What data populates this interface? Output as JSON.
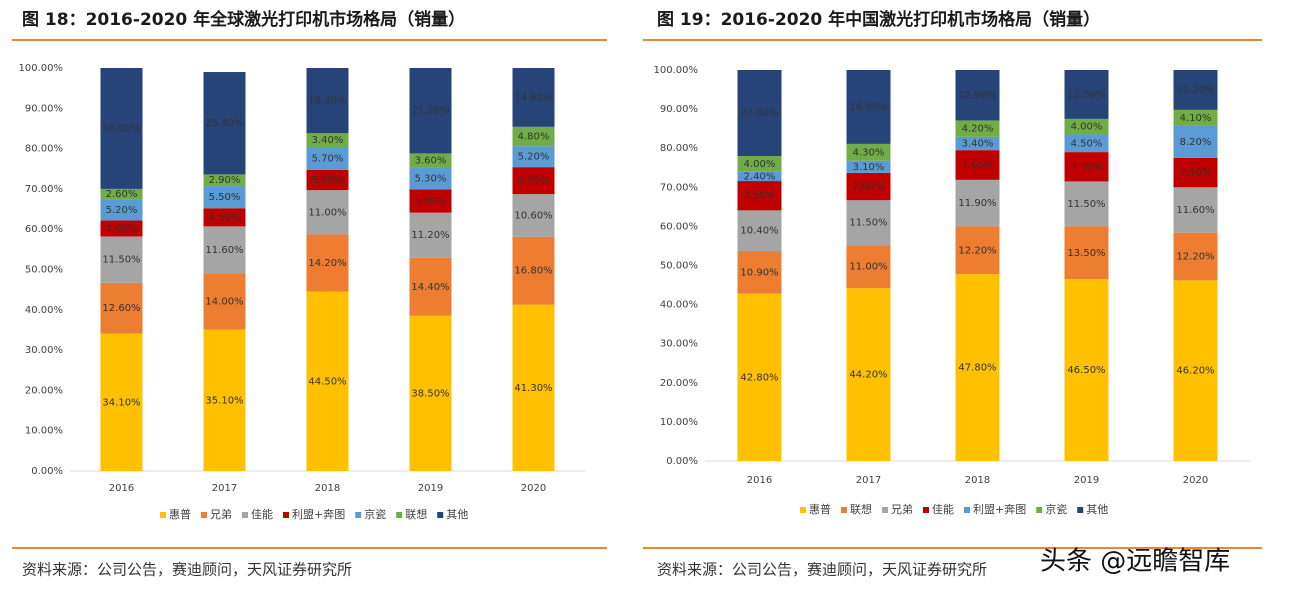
{
  "chart_data": [
    {
      "type": "stacked-bar",
      "title": "图 18：2016-2020 年全球激光打印机市场格局（销量）",
      "source": "资料来源：公司公告，赛迪顾问，天风证券研究所",
      "categories": [
        "2016",
        "2017",
        "2018",
        "2019",
        "2020"
      ],
      "ylim": [
        0,
        100
      ],
      "yticks": [
        {
          "value": 0,
          "label": "0.00%"
        },
        {
          "value": 10,
          "label": "10.00%"
        },
        {
          "value": 20,
          "label": "20.00%"
        },
        {
          "value": 30,
          "label": "30.00%"
        },
        {
          "value": 40,
          "label": "40.00%"
        },
        {
          "value": 50,
          "label": "50.00%"
        },
        {
          "value": 60,
          "label": "60.00%"
        },
        {
          "value": 70,
          "label": "70.00%"
        },
        {
          "value": 80,
          "label": "80.00%"
        },
        {
          "value": 90,
          "label": "90.00%"
        },
        {
          "value": 100,
          "label": "100.00%"
        }
      ],
      "series": [
        {
          "name": "惠普",
          "color": "#ffc000",
          "values": [
            34.1,
            35.1,
            44.5,
            38.5,
            41.3
          ],
          "value_labels": [
            "34.10%",
            "35.10%",
            "44.50%",
            "38.50%",
            "41.30%"
          ]
        },
        {
          "name": "兄弟",
          "color": "#ed7d31",
          "values": [
            12.6,
            14.0,
            14.2,
            14.4,
            16.8
          ],
          "value_labels": [
            "12.60%",
            "14.00%",
            "14.20%",
            "14.40%",
            "16.80%"
          ]
        },
        {
          "name": "佳能",
          "color": "#a5a5a5",
          "values": [
            11.5,
            11.6,
            11.0,
            11.2,
            10.6
          ],
          "value_labels": [
            "11.50%",
            "11.60%",
            "11.00%",
            "11.20%",
            "10.60%"
          ]
        },
        {
          "name": "利盟+奔图",
          "color": "#c00000",
          "values": [
            4.0,
            4.5,
            5.0,
            5.8,
            6.7
          ],
          "value_labels": [
            "4.00%",
            "4.50%",
            "5.00%",
            "5.80%",
            "6.70%"
          ]
        },
        {
          "name": "京瓷",
          "color": "#5b9bd5",
          "values": [
            5.2,
            5.5,
            5.7,
            5.3,
            5.2
          ],
          "value_labels": [
            "5.20%",
            "5.50%",
            "5.70%",
            "5.30%",
            "5.20%"
          ]
        },
        {
          "name": "联想",
          "color": "#70ad47",
          "values": [
            2.6,
            2.9,
            3.4,
            3.6,
            4.8
          ],
          "value_labels": [
            "2.60%",
            "2.90%",
            "3.40%",
            "3.60%",
            "4.80%"
          ]
        },
        {
          "name": "其他",
          "color": "#264478",
          "values": [
            30.0,
            25.4,
            16.2,
            21.2,
            14.6
          ],
          "value_labels": [
            "30.00%",
            "25.40%",
            "16.20%",
            "21.20%",
            "14.60%"
          ]
        }
      ]
    },
    {
      "type": "stacked-bar",
      "title": "图 19：2016-2020 年中国激光打印机市场格局（销量）",
      "source": "资料来源：公司公告，赛迪顾问，天风证券研究所",
      "categories": [
        "2016",
        "2017",
        "2018",
        "2019",
        "2020"
      ],
      "ylim": [
        0,
        100
      ],
      "yticks": [
        {
          "value": 0,
          "label": "0.00%"
        },
        {
          "value": 10,
          "label": "10.00%"
        },
        {
          "value": 20,
          "label": "20.00%"
        },
        {
          "value": 30,
          "label": "30.00%"
        },
        {
          "value": 40,
          "label": "40.00%"
        },
        {
          "value": 50,
          "label": "50.00%"
        },
        {
          "value": 60,
          "label": "60.00%"
        },
        {
          "value": 70,
          "label": "70.00%"
        },
        {
          "value": 80,
          "label": "80.00%"
        },
        {
          "value": 90,
          "label": "90.00%"
        },
        {
          "value": 100,
          "label": "100.00%"
        }
      ],
      "series": [
        {
          "name": "惠普",
          "color": "#ffc000",
          "values": [
            42.8,
            44.2,
            47.8,
            46.5,
            46.2
          ],
          "value_labels": [
            "42.80%",
            "44.20%",
            "47.80%",
            "46.50%",
            "46.20%"
          ]
        },
        {
          "name": "联想",
          "color": "#ed7d31",
          "values": [
            10.9,
            11.0,
            12.2,
            13.5,
            12.2
          ],
          "value_labels": [
            "10.90%",
            "11.00%",
            "12.20%",
            "13.50%",
            "12.20%"
          ]
        },
        {
          "name": "兄弟",
          "color": "#a5a5a5",
          "values": [
            10.4,
            11.5,
            11.9,
            11.5,
            11.6
          ],
          "value_labels": [
            "10.40%",
            "11.50%",
            "11.90%",
            "11.50%",
            "11.60%"
          ]
        },
        {
          "name": "佳能",
          "color": "#c00000",
          "values": [
            7.5,
            7.0,
            7.6,
            7.5,
            7.5
          ],
          "value_labels": [
            "7.50%",
            "7.00%",
            "7.60%",
            "7.50%",
            "7.50%"
          ]
        },
        {
          "name": "利盟+奔图",
          "color": "#5b9bd5",
          "values": [
            2.4,
            3.1,
            3.4,
            4.5,
            8.2
          ],
          "value_labels": [
            "2.40%",
            "3.10%",
            "3.40%",
            "4.50%",
            "8.20%"
          ]
        },
        {
          "name": "京瓷",
          "color": "#70ad47",
          "values": [
            4.0,
            4.3,
            4.2,
            4.0,
            4.1
          ],
          "value_labels": [
            "4.00%",
            "4.30%",
            "4.20%",
            "4.00%",
            "4.10%"
          ]
        },
        {
          "name": "其他",
          "color": "#264478",
          "values": [
            22.0,
            18.9,
            12.9,
            12.5,
            10.2
          ],
          "value_labels": [
            "22.00%",
            "18.90%",
            "12.90%",
            "12.50%",
            "10.20%"
          ]
        }
      ]
    }
  ],
  "watermark": "头条 @远瞻智库"
}
